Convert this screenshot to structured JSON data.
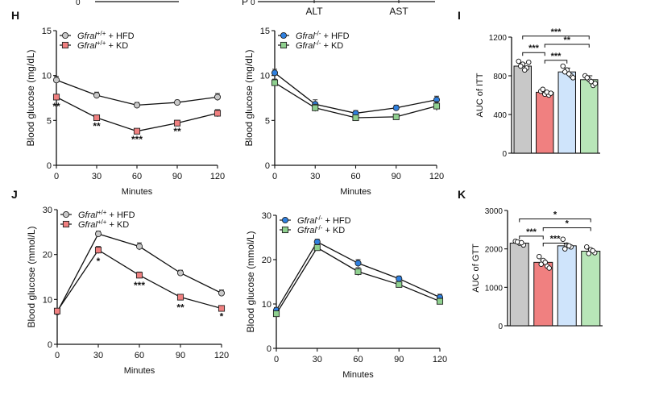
{
  "colors": {
    "hfd_wt": "#c8c8c8",
    "kd_wt": "#f08080",
    "hfd_ko": "#2f80e0",
    "kd_ko": "#8fd08f",
    "bar_ko_hfd": "#cfe4fb",
    "bar_ko_kd": "#b8e6b8",
    "axis": "#111111"
  },
  "top_remnant": {
    "labels": [
      "ALT",
      "AST"
    ],
    "zero_label": "0",
    "cut_letter": "P"
  },
  "chart_data": [
    {
      "id": "H_left",
      "panel": "H",
      "type": "line",
      "xlabel": "Minutes",
      "ylabel": "Blood glucose (mg/dL)",
      "xlim": [
        0,
        120
      ],
      "ylim": [
        0,
        15
      ],
      "xticks": [
        0,
        30,
        60,
        90,
        120
      ],
      "yticks": [
        0,
        5,
        10,
        15
      ],
      "legend_position": "top-left",
      "series": [
        {
          "name_italic": "Gfral",
          "name_sup": "+/+",
          "name_rest": " + HFD",
          "color_key": "hfd_wt",
          "marker": "circle",
          "x": [
            0,
            30,
            60,
            90,
            120
          ],
          "y": [
            9.5,
            7.8,
            6.7,
            7.0,
            7.6
          ],
          "err": [
            0.4,
            0.35,
            0.3,
            0.25,
            0.4
          ]
        },
        {
          "name_italic": "Gfral",
          "name_sup": "+/+",
          "name_rest": " + KD",
          "color_key": "kd_wt",
          "marker": "square",
          "x": [
            0,
            30,
            60,
            90,
            120
          ],
          "y": [
            7.6,
            5.3,
            3.8,
            4.7,
            5.8
          ],
          "err": [
            0.3,
            0.3,
            0.25,
            0.3,
            0.4
          ]
        }
      ],
      "annotations": [
        {
          "x": 0,
          "y": 6.2,
          "text": "**"
        },
        {
          "x": 30,
          "y": 4.0,
          "text": "**"
        },
        {
          "x": 60,
          "y": 2.5,
          "text": "***"
        },
        {
          "x": 90,
          "y": 3.4,
          "text": "**"
        }
      ]
    },
    {
      "id": "H_right",
      "panel": "",
      "type": "line",
      "xlabel": "Minutes",
      "ylabel": "Blood glucose (mg/dL)",
      "xlim": [
        0,
        120
      ],
      "ylim": [
        0,
        15
      ],
      "xticks": [
        0,
        30,
        60,
        90,
        120
      ],
      "yticks": [
        0,
        5,
        10,
        15
      ],
      "legend_position": "top-left",
      "series": [
        {
          "name_italic": "Gfral",
          "name_sup": "-/-",
          "name_rest": " + HFD",
          "color_key": "hfd_ko",
          "marker": "circle",
          "x": [
            0,
            30,
            60,
            90,
            120
          ],
          "y": [
            10.3,
            6.8,
            5.8,
            6.4,
            7.3
          ],
          "err": [
            0.4,
            0.5,
            0.3,
            0.3,
            0.4
          ]
        },
        {
          "name_italic": "Gfral",
          "name_sup": "-/-",
          "name_rest": " + KD",
          "color_key": "kd_ko",
          "marker": "square",
          "x": [
            0,
            30,
            60,
            90,
            120
          ],
          "y": [
            9.2,
            6.4,
            5.3,
            5.4,
            6.6
          ],
          "err": [
            0.4,
            0.4,
            0.3,
            0.3,
            0.5
          ]
        }
      ],
      "annotations": []
    },
    {
      "id": "I",
      "panel": "I",
      "type": "bar",
      "ylabel": "AUC of ITT",
      "ylim": [
        0,
        1200
      ],
      "yticks": [
        0,
        400,
        800,
        1200
      ],
      "values": [
        900,
        630,
        840,
        760
      ],
      "err": [
        30,
        20,
        40,
        40
      ],
      "color_keys": [
        "hfd_wt",
        "kd_wt",
        "bar_ko_hfd",
        "bar_ko_kd"
      ],
      "points": [
        [
          950,
          920,
          880,
          900,
          860,
          940
        ],
        [
          640,
          610,
          600,
          660,
          630,
          620
        ],
        [
          900,
          860,
          800,
          840,
          820,
          780
        ],
        [
          800,
          760,
          700,
          780,
          740,
          720
        ]
      ],
      "brackets": [
        {
          "from": 0,
          "to": 3,
          "level": 1210,
          "text": "***"
        },
        {
          "from": 1,
          "to": 3,
          "level": 1125,
          "text": "**"
        },
        {
          "from": 0,
          "to": 1,
          "level": 1040,
          "text": "***"
        },
        {
          "from": 1,
          "to": 2,
          "level": 960,
          "text": "***"
        }
      ]
    },
    {
      "id": "J_left",
      "panel": "J",
      "type": "line",
      "xlabel": "Minutes",
      "ylabel": "Blood glucose (mmol/L)",
      "xlim": [
        0,
        120
      ],
      "ylim": [
        0,
        30
      ],
      "xticks": [
        0,
        30,
        60,
        90,
        120
      ],
      "yticks": [
        0,
        10,
        20,
        30
      ],
      "legend_position": "top-left",
      "series": [
        {
          "name_italic": "Gfral",
          "name_sup": "+/+",
          "name_rest": " + HFD",
          "color_key": "hfd_wt",
          "marker": "circle",
          "x": [
            0,
            30,
            60,
            90,
            120
          ],
          "y": [
            7.2,
            24.6,
            21.8,
            15.9,
            11.4
          ],
          "err": [
            0.5,
            0.6,
            0.8,
            0.6,
            0.7
          ]
        },
        {
          "name_italic": "Gfral",
          "name_sup": "+/+",
          "name_rest": " + KD",
          "color_key": "kd_wt",
          "marker": "square",
          "x": [
            0,
            30,
            60,
            90,
            120
          ],
          "y": [
            7.4,
            21.0,
            15.4,
            10.5,
            8.0
          ],
          "err": [
            0.5,
            0.8,
            0.7,
            0.6,
            0.5
          ]
        }
      ],
      "annotations": [
        {
          "x": 30,
          "y": 17.8,
          "text": "*"
        },
        {
          "x": 60,
          "y": 12.4,
          "text": "***"
        },
        {
          "x": 90,
          "y": 7.5,
          "text": "**"
        },
        {
          "x": 120,
          "y": 5.5,
          "text": "*"
        }
      ]
    },
    {
      "id": "J_right",
      "panel": "",
      "type": "line",
      "xlabel": "Minutes",
      "ylabel": "Blood glucose (mmol/L)",
      "xlim": [
        0,
        120
      ],
      "ylim": [
        0,
        30
      ],
      "xticks": [
        0,
        30,
        60,
        90,
        120
      ],
      "yticks": [
        0,
        10,
        20,
        30
      ],
      "legend_position": "top-left",
      "series": [
        {
          "name_italic": "Gfral",
          "name_sup": "-/-",
          "name_rest": " + HFD",
          "color_key": "hfd_ko",
          "marker": "circle",
          "x": [
            0,
            30,
            60,
            90,
            120
          ],
          "y": [
            8.6,
            24.0,
            19.2,
            15.7,
            11.5
          ],
          "err": [
            0.6,
            0.6,
            0.8,
            0.6,
            0.7
          ]
        },
        {
          "name_italic": "Gfral",
          "name_sup": "-/-",
          "name_rest": " + KD",
          "color_key": "kd_ko",
          "marker": "square",
          "x": [
            0,
            30,
            60,
            90,
            120
          ],
          "y": [
            7.8,
            22.7,
            17.3,
            14.4,
            10.6
          ],
          "err": [
            0.6,
            0.7,
            0.9,
            0.6,
            0.7
          ]
        }
      ],
      "annotations": []
    },
    {
      "id": "K",
      "panel": "K",
      "type": "bar",
      "ylabel": "AUC of GTT",
      "ylim": [
        0,
        3000
      ],
      "yticks": [
        0,
        1000,
        2000,
        3000
      ],
      "values": [
        2150,
        1650,
        2080,
        1940
      ],
      "err": [
        40,
        60,
        50,
        50
      ],
      "color_keys": [
        "hfd_wt",
        "kd_wt",
        "bar_ko_hfd",
        "bar_ko_kd"
      ],
      "points": [
        [
          2200,
          2150,
          2100,
          2180,
          2160
        ],
        [
          1800,
          1700,
          1550,
          1600,
          1650,
          1500
        ],
        [
          2250,
          2100,
          2050,
          2000,
          2080
        ],
        [
          2050,
          1980,
          1900,
          1880,
          1950
        ]
      ],
      "brackets": [
        {
          "from": 0,
          "to": 3,
          "level": 2780,
          "text": "*"
        },
        {
          "from": 1,
          "to": 3,
          "level": 2550,
          "text": "*"
        },
        {
          "from": 0,
          "to": 1,
          "level": 2330,
          "text": "***"
        },
        {
          "from": 1,
          "to": 2,
          "level": 2150,
          "text": "***"
        }
      ]
    }
  ]
}
